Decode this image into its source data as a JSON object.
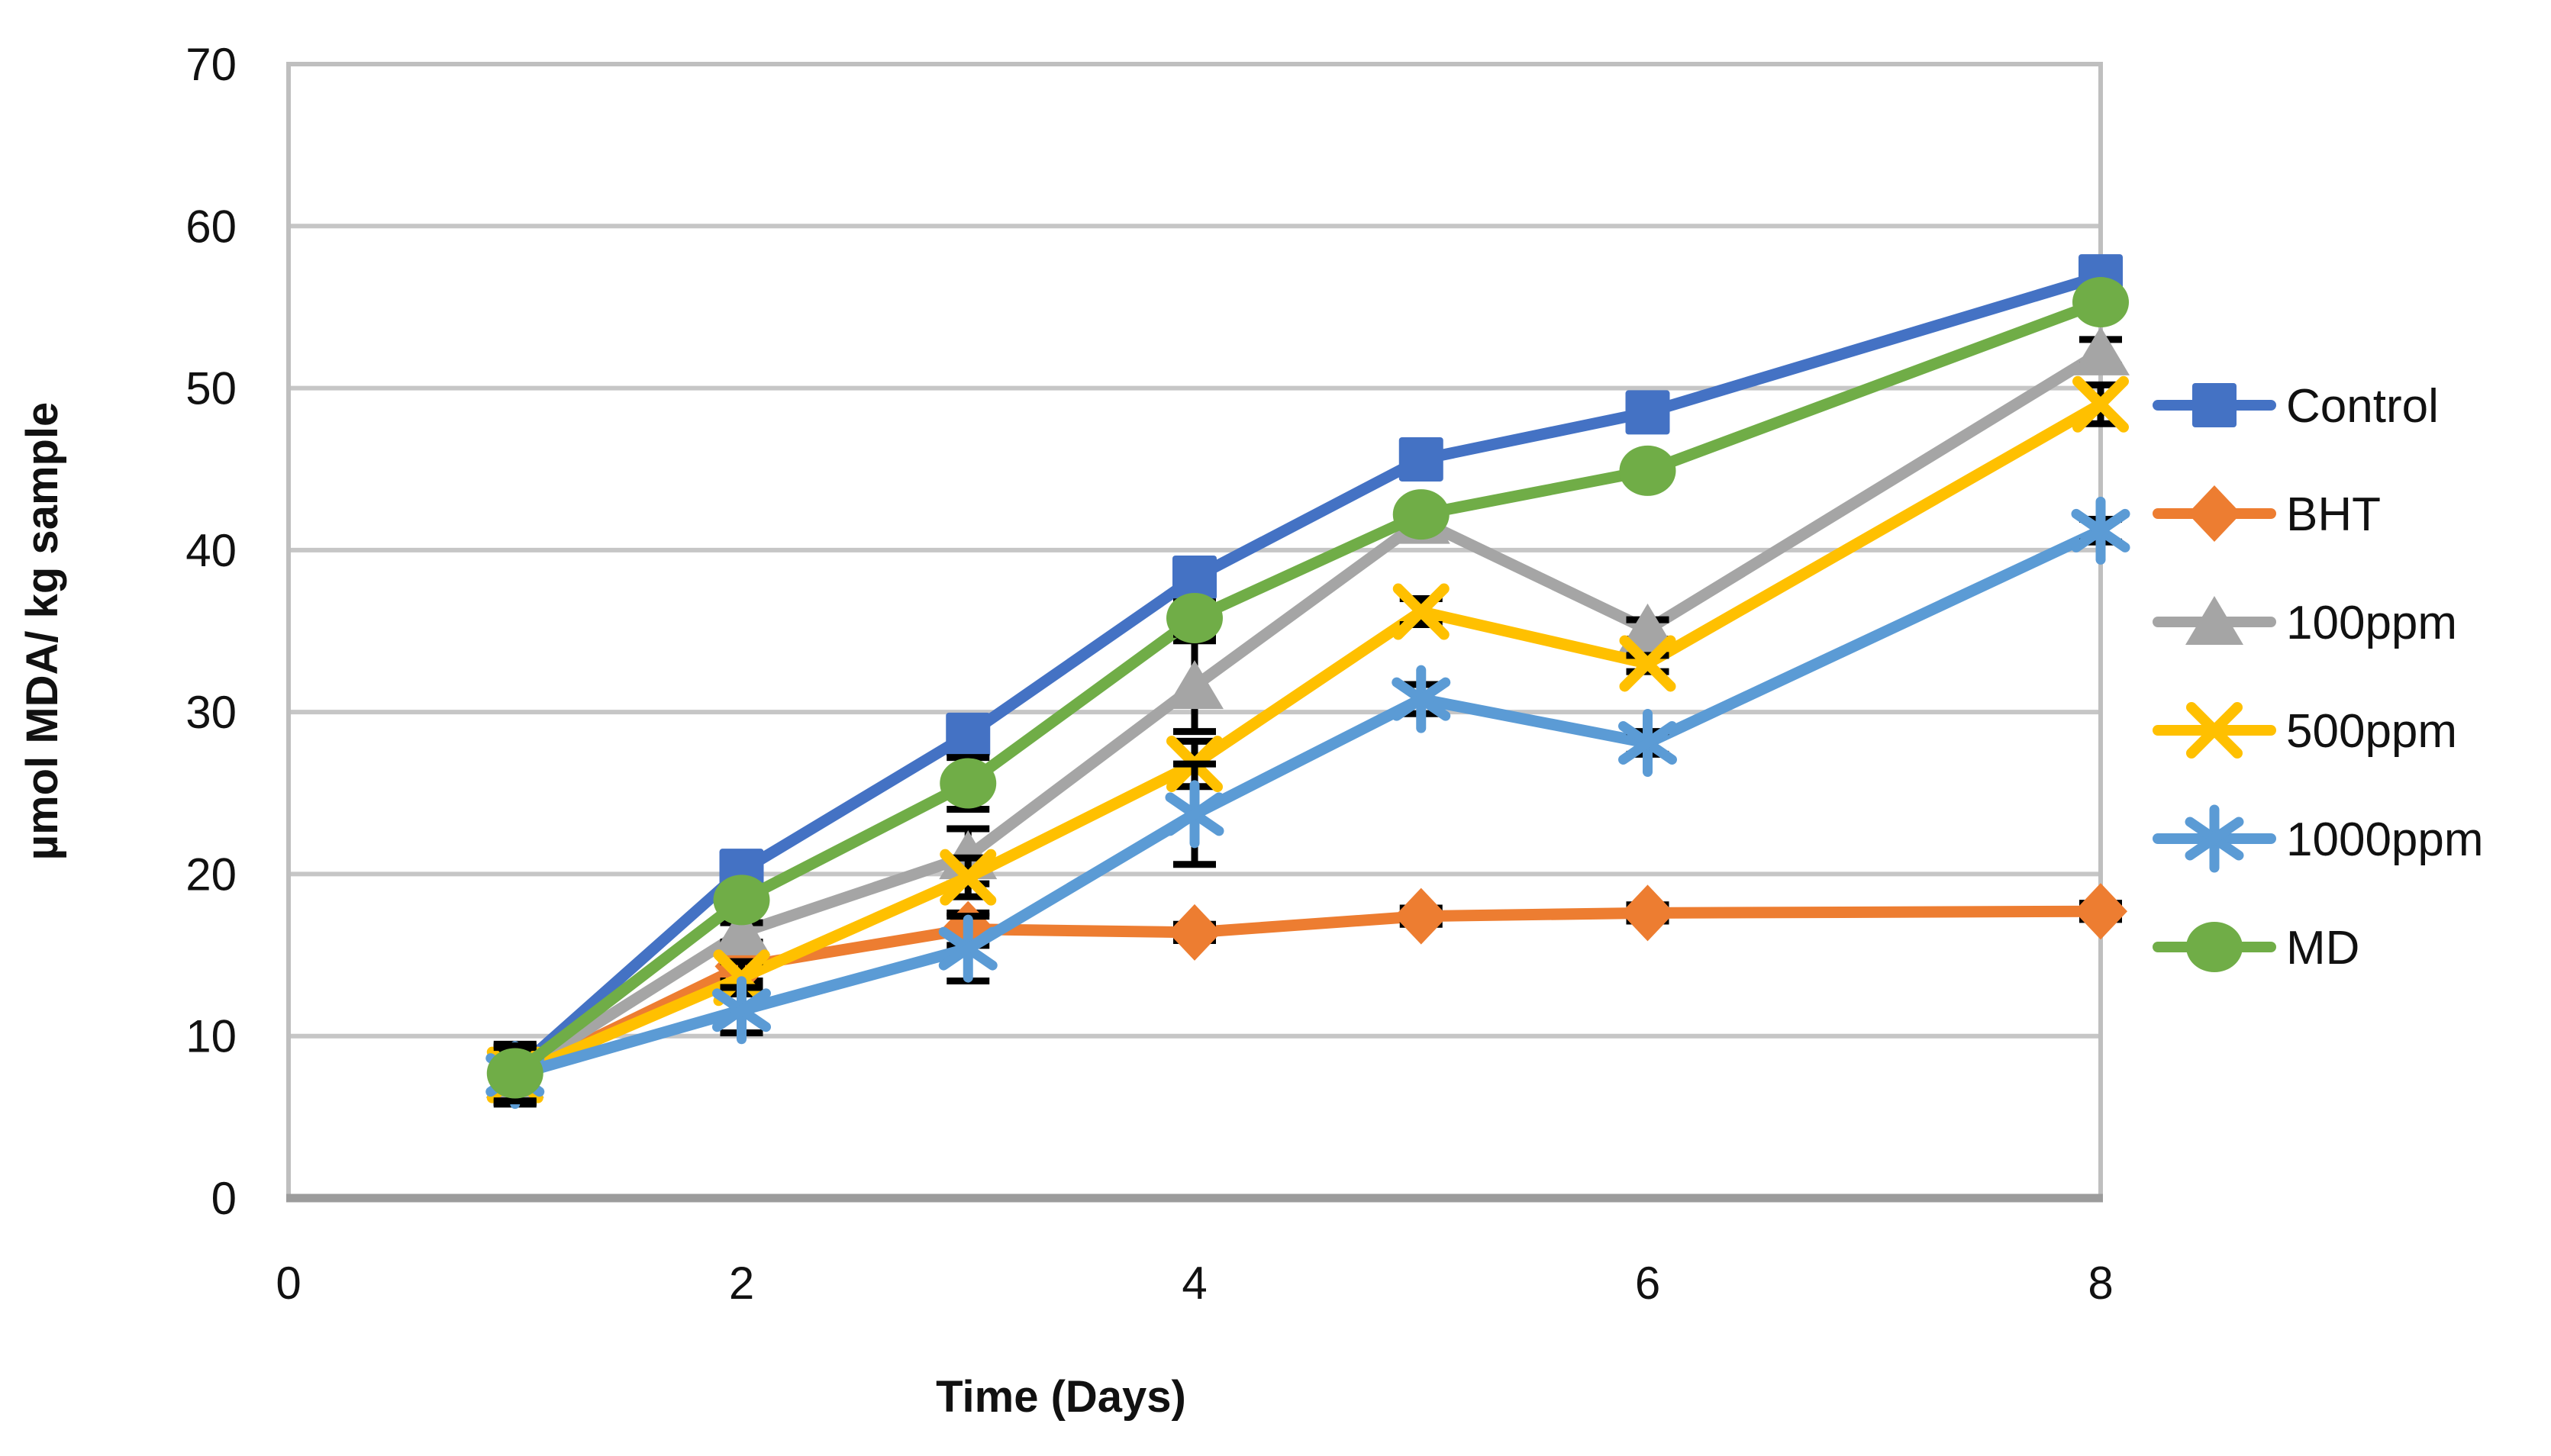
{
  "chart_data": {
    "type": "line",
    "title": "",
    "xlabel": "Time (Days)",
    "ylabel": "µmol MDA/ kg sample",
    "xlim": [
      0,
      8
    ],
    "ylim": [
      0,
      70
    ],
    "x_ticks": [
      0,
      2,
      4,
      6,
      8
    ],
    "y_ticks": [
      0,
      10,
      20,
      30,
      40,
      50,
      60,
      70
    ],
    "grid": "horizontal",
    "legend_position": "right",
    "error_bar_color": "#000000",
    "gridline_color": "#c6c6c6",
    "border_color": "#bfbfbf",
    "axis_line_color": "#9c9c9c",
    "x": [
      1,
      2,
      3,
      4,
      5,
      6,
      8
    ],
    "series": [
      {
        "name": "Control",
        "color": "#4472C4",
        "marker": "square",
        "values": [
          7.8,
          20.2,
          28.6,
          38.3,
          45.6,
          48.5,
          56.9
        ],
        "errors": [
          1.7,
          0.5,
          0.6,
          1.1,
          0.5,
          0.5,
          0.5
        ]
      },
      {
        "name": "BHT",
        "color": "#ED7D31",
        "marker": "diamond",
        "values": [
          7.5,
          14.3,
          16.6,
          16.4,
          17.4,
          17.6,
          17.7
        ],
        "errors": [
          1.7,
          0.9,
          1.0,
          0.5,
          0.5,
          0.5,
          0.5
        ]
      },
      {
        "name": "100ppm",
        "color": "#A5A5A5",
        "marker": "triangle",
        "values": [
          7.6,
          16.4,
          21.1,
          31.6,
          41.8,
          35.1,
          52.2
        ],
        "errors": [
          1.7,
          0.6,
          1.7,
          2.8,
          0.6,
          0.6,
          0.8
        ]
      },
      {
        "name": "500ppm",
        "color": "#FFC000",
        "marker": "x",
        "values": [
          7.6,
          13.6,
          19.8,
          26.8,
          36.2,
          33.0,
          49.0
        ],
        "errors": [
          1.7,
          1.0,
          1.2,
          1.4,
          0.8,
          0.5,
          1.2
        ]
      },
      {
        "name": "1000ppm",
        "color": "#5B9BD5",
        "marker": "asterisk",
        "values": [
          7.6,
          11.6,
          15.4,
          23.7,
          30.8,
          28.1,
          41.2
        ],
        "errors": [
          1.7,
          1.4,
          2.0,
          3.1,
          0.9,
          0.7,
          0.7
        ]
      },
      {
        "name": "MD",
        "color": "#70AD47",
        "marker": "circle",
        "values": [
          7.7,
          18.4,
          25.6,
          35.8,
          42.2,
          44.9,
          55.3
        ],
        "errors": [
          1.7,
          0.5,
          1.6,
          1.0,
          0.5,
          0.5,
          0.5
        ]
      }
    ]
  }
}
